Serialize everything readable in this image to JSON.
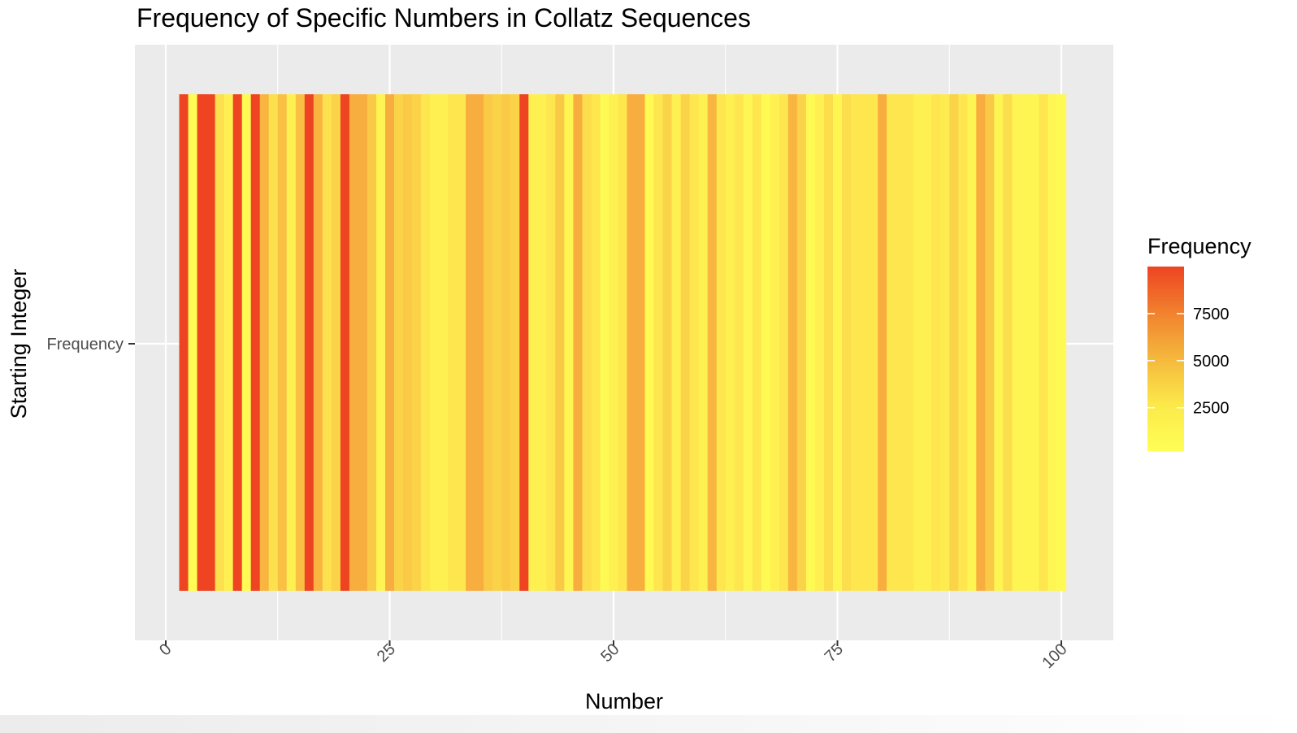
{
  "chart_data": {
    "type": "heatmap",
    "title": "Frequency of Specific Numbers in Collatz Sequences",
    "xlabel": "Number",
    "ylabel": "Starting Integer",
    "y_categories": [
      "Frequency"
    ],
    "xlim": [
      0,
      106
    ],
    "x_ticks": [
      0,
      25,
      50,
      75,
      100
    ],
    "x_tick_labels": [
      "0",
      "25",
      "50",
      "75",
      "100"
    ],
    "legend": {
      "title": "Frequency",
      "position": "right",
      "range": [
        200,
        10000
      ],
      "ticks": [
        2500,
        5000,
        7500
      ],
      "tick_labels": [
        "2500",
        "5000",
        "7500"
      ],
      "low_color": "#ffff55",
      "high_color": "#ee4422"
    },
    "grid": true,
    "x": [
      1,
      2,
      3,
      4,
      5,
      6,
      7,
      8,
      9,
      10,
      11,
      12,
      13,
      14,
      15,
      16,
      17,
      18,
      19,
      20,
      21,
      22,
      23,
      24,
      25,
      26,
      27,
      28,
      29,
      30,
      31,
      32,
      33,
      34,
      35,
      36,
      37,
      38,
      39,
      40,
      41,
      42,
      43,
      44,
      45,
      46,
      47,
      48,
      49,
      50,
      51,
      52,
      53,
      54,
      55,
      56,
      57,
      58,
      59,
      60,
      61,
      62,
      63,
      64,
      65,
      66,
      67,
      68,
      69,
      70,
      71,
      72,
      73,
      74,
      75,
      76,
      77,
      78,
      79,
      80,
      81,
      82,
      83,
      84,
      85,
      86,
      87,
      88,
      89,
      90,
      91,
      92,
      93,
      94,
      95,
      96,
      97,
      98,
      99,
      100
    ],
    "values": [
      0,
      10000,
      300,
      10000,
      10000,
      1800,
      1000,
      10000,
      400,
      10000,
      4000,
      1800,
      3500,
      1000,
      3500,
      10000,
      4000,
      1800,
      2500,
      10000,
      4500,
      4500,
      3000,
      800,
      4500,
      2500,
      3000,
      2500,
      1500,
      1000,
      1000,
      1500,
      1500,
      4500,
      4500,
      3000,
      2500,
      3000,
      2500,
      10000,
      1000,
      1000,
      1500,
      3000,
      800,
      4500,
      2000,
      1500,
      500,
      1000,
      1500,
      4500,
      4500,
      500,
      1500,
      2500,
      1000,
      2500,
      1500,
      1000,
      4000,
      1500,
      1000,
      1500,
      600,
      1500,
      500,
      1000,
      1500,
      4000,
      2500,
      500,
      1000,
      2000,
      800,
      2000,
      1500,
      1500,
      1500,
      4500,
      1500,
      1500,
      1500,
      1000,
      1000,
      1500,
      1200,
      2500,
      1500,
      800,
      4500,
      3000,
      800,
      2000,
      800,
      800,
      800,
      1500,
      600,
      500
    ]
  }
}
